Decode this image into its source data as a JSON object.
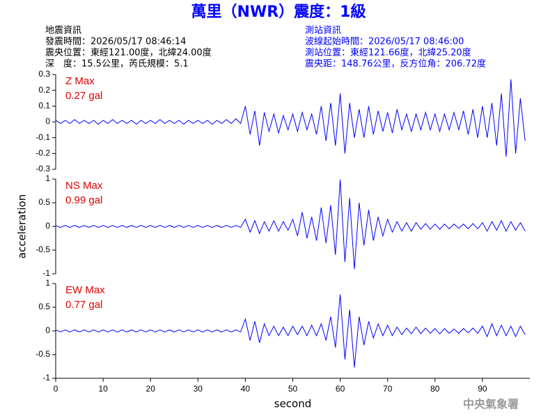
{
  "header": {
    "title": "萬里（NWR）震度：1級",
    "left": [
      "地震資訊",
      "發震時間：2026/05/17 08:46:14",
      "震央位置：東經121.00度，北緯24.00度",
      "深　度：15.5公里，芮氏規模：5.1"
    ],
    "right": [
      "測站資訊",
      "波線起始時間：2026/05/17 08:46:00",
      "測站位置：東經121.66度，北緯25.20度",
      "震央距：148.76公里，反方位角：206.72度"
    ]
  },
  "chart_data": [
    {
      "type": "line",
      "annotations": [
        "Z Max",
        "0.27 gal"
      ],
      "color": "#0000ff",
      "xlim": [
        0,
        100
      ],
      "ylim": [
        -0.3,
        0.3
      ],
      "yticks": [
        0.3,
        0.2,
        0.1,
        0,
        -0.1,
        -0.2,
        -0.3
      ],
      "x": [
        0,
        1,
        2,
        3,
        4,
        5,
        6,
        7,
        8,
        9,
        10,
        11,
        12,
        13,
        14,
        15,
        16,
        17,
        18,
        19,
        20,
        21,
        22,
        23,
        24,
        25,
        26,
        27,
        28,
        29,
        30,
        31,
        32,
        33,
        34,
        35,
        36,
        37,
        38,
        39,
        40,
        41,
        42,
        43,
        44,
        45,
        46,
        47,
        48,
        49,
        50,
        51,
        52,
        53,
        54,
        55,
        56,
        57,
        58,
        59,
        60,
        61,
        62,
        63,
        64,
        65,
        66,
        67,
        68,
        69,
        70,
        71,
        72,
        73,
        74,
        75,
        76,
        77,
        78,
        79,
        80,
        81,
        82,
        83,
        84,
        85,
        86,
        87,
        88,
        89,
        90,
        91,
        92,
        93,
        94,
        95,
        96,
        97,
        98,
        99
      ],
      "values": [
        0.01,
        -0.01,
        0.01,
        -0.01,
        0.015,
        -0.01,
        0.01,
        -0.01,
        0.01,
        -0.015,
        0.01,
        -0.01,
        0.015,
        -0.01,
        0.01,
        -0.01,
        0.01,
        -0.015,
        0.01,
        -0.01,
        0.01,
        -0.01,
        0.015,
        -0.01,
        0.01,
        -0.01,
        0.01,
        -0.015,
        0.01,
        -0.01,
        0.01,
        -0.01,
        0.01,
        -0.015,
        0.01,
        -0.01,
        0.015,
        -0.01,
        0.02,
        -0.01,
        0.1,
        -0.08,
        0.07,
        -0.15,
        0.06,
        -0.06,
        0.05,
        -0.07,
        0.04,
        -0.05,
        0.05,
        -0.06,
        0.06,
        -0.05,
        0.05,
        -0.08,
        0.1,
        -0.12,
        0.12,
        -0.15,
        0.18,
        -0.2,
        0.12,
        -0.1,
        0.08,
        -0.1,
        0.1,
        -0.08,
        0.07,
        -0.06,
        0.06,
        -0.07,
        0.08,
        -0.05,
        0.05,
        -0.06,
        0.05,
        -0.05,
        0.06,
        -0.05,
        0.05,
        -0.06,
        0.05,
        -0.05,
        0.06,
        -0.05,
        0.07,
        -0.08,
        0.08,
        -0.1,
        0.1,
        -0.1,
        0.12,
        -0.15,
        0.18,
        -0.22,
        0.27,
        -0.2,
        0.15,
        -0.12
      ]
    },
    {
      "type": "line",
      "annotations": [
        "NS Max",
        "0.99 gal"
      ],
      "ylabel": "acceleration",
      "color": "#0000ff",
      "xlim": [
        0,
        100
      ],
      "ylim": [
        -1,
        1
      ],
      "yticks": [
        1,
        0.5,
        0,
        -0.5,
        -1
      ],
      "x": [
        0,
        1,
        2,
        3,
        4,
        5,
        6,
        7,
        8,
        9,
        10,
        11,
        12,
        13,
        14,
        15,
        16,
        17,
        18,
        19,
        20,
        21,
        22,
        23,
        24,
        25,
        26,
        27,
        28,
        29,
        30,
        31,
        32,
        33,
        34,
        35,
        36,
        37,
        38,
        39,
        40,
        41,
        42,
        43,
        44,
        45,
        46,
        47,
        48,
        49,
        50,
        51,
        52,
        53,
        54,
        55,
        56,
        57,
        58,
        59,
        60,
        61,
        62,
        63,
        64,
        65,
        66,
        67,
        68,
        69,
        70,
        71,
        72,
        73,
        74,
        75,
        76,
        77,
        78,
        79,
        80,
        81,
        82,
        83,
        84,
        85,
        86,
        87,
        88,
        89,
        90,
        91,
        92,
        93,
        94,
        95,
        96,
        97,
        98,
        99
      ],
      "values": [
        0.02,
        -0.02,
        0.02,
        -0.02,
        0.02,
        -0.02,
        0.02,
        -0.02,
        0.02,
        -0.02,
        0.02,
        -0.02,
        0.02,
        -0.02,
        0.02,
        -0.02,
        0.02,
        -0.02,
        0.02,
        -0.02,
        0.02,
        -0.02,
        0.02,
        -0.02,
        0.02,
        -0.02,
        0.02,
        -0.02,
        0.02,
        -0.02,
        0.02,
        -0.02,
        0.02,
        -0.02,
        0.02,
        -0.02,
        0.02,
        -0.02,
        0.02,
        -0.02,
        0.15,
        -0.12,
        0.12,
        -0.15,
        0.1,
        -0.1,
        0.12,
        -0.1,
        0.1,
        -0.08,
        0.15,
        -0.2,
        0.3,
        -0.25,
        0.2,
        -0.3,
        0.4,
        -0.35,
        0.45,
        -0.6,
        0.99,
        -0.75,
        0.6,
        -0.9,
        0.5,
        -0.4,
        0.35,
        -0.3,
        0.2,
        -0.2,
        0.15,
        -0.12,
        0.1,
        -0.1,
        0.08,
        -0.1,
        0.08,
        -0.06,
        0.06,
        -0.06,
        0.05,
        -0.06,
        0.05,
        -0.05,
        0.05,
        -0.04,
        0.05,
        -0.05,
        0.06,
        -0.05,
        0.08,
        -0.1,
        0.1,
        -0.08,
        0.12,
        -0.1,
        0.1,
        -0.08,
        0.08,
        -0.1
      ]
    },
    {
      "type": "line",
      "annotations": [
        "EW Max",
        "0.77 gal"
      ],
      "xlabel": "second",
      "color": "#0000ff",
      "xlim": [
        0,
        100
      ],
      "xticks": [
        0,
        10,
        20,
        30,
        40,
        50,
        60,
        70,
        80,
        90
      ],
      "ylim": [
        -1,
        1
      ],
      "yticks": [
        1,
        0.5,
        0,
        -0.5,
        -1
      ],
      "x": [
        0,
        1,
        2,
        3,
        4,
        5,
        6,
        7,
        8,
        9,
        10,
        11,
        12,
        13,
        14,
        15,
        16,
        17,
        18,
        19,
        20,
        21,
        22,
        23,
        24,
        25,
        26,
        27,
        28,
        29,
        30,
        31,
        32,
        33,
        34,
        35,
        36,
        37,
        38,
        39,
        40,
        41,
        42,
        43,
        44,
        45,
        46,
        47,
        48,
        49,
        50,
        51,
        52,
        53,
        54,
        55,
        56,
        57,
        58,
        59,
        60,
        61,
        62,
        63,
        64,
        65,
        66,
        67,
        68,
        69,
        70,
        71,
        72,
        73,
        74,
        75,
        76,
        77,
        78,
        79,
        80,
        81,
        82,
        83,
        84,
        85,
        86,
        87,
        88,
        89,
        90,
        91,
        92,
        93,
        94,
        95,
        96,
        97,
        98,
        99
      ],
      "values": [
        0.02,
        -0.02,
        0.02,
        -0.02,
        0.02,
        -0.02,
        0.02,
        -0.02,
        0.02,
        -0.02,
        0.02,
        -0.02,
        0.02,
        -0.02,
        0.02,
        -0.02,
        0.02,
        -0.02,
        0.02,
        -0.02,
        0.02,
        -0.02,
        0.02,
        -0.02,
        0.02,
        -0.02,
        0.02,
        -0.02,
        0.02,
        -0.02,
        0.02,
        -0.02,
        0.02,
        -0.02,
        0.02,
        -0.02,
        0.02,
        -0.02,
        0.02,
        -0.02,
        0.25,
        -0.2,
        0.2,
        -0.25,
        0.15,
        -0.1,
        0.1,
        -0.1,
        0.08,
        -0.1,
        0.1,
        -0.08,
        0.1,
        -0.1,
        0.12,
        -0.1,
        0.15,
        -0.2,
        0.3,
        -0.35,
        0.77,
        -0.6,
        0.45,
        -0.77,
        0.3,
        -0.3,
        0.2,
        -0.15,
        0.15,
        -0.1,
        0.12,
        -0.1,
        0.08,
        -0.08,
        0.06,
        -0.06,
        0.08,
        -0.06,
        0.06,
        -0.05,
        0.05,
        -0.06,
        0.05,
        -0.05,
        0.04,
        -0.05,
        0.05,
        -0.04,
        0.06,
        -0.05,
        0.1,
        -0.12,
        0.15,
        -0.1,
        0.12,
        -0.1,
        0.1,
        -0.12,
        0.1,
        -0.08
      ]
    }
  ],
  "footer": "中央氣象署"
}
